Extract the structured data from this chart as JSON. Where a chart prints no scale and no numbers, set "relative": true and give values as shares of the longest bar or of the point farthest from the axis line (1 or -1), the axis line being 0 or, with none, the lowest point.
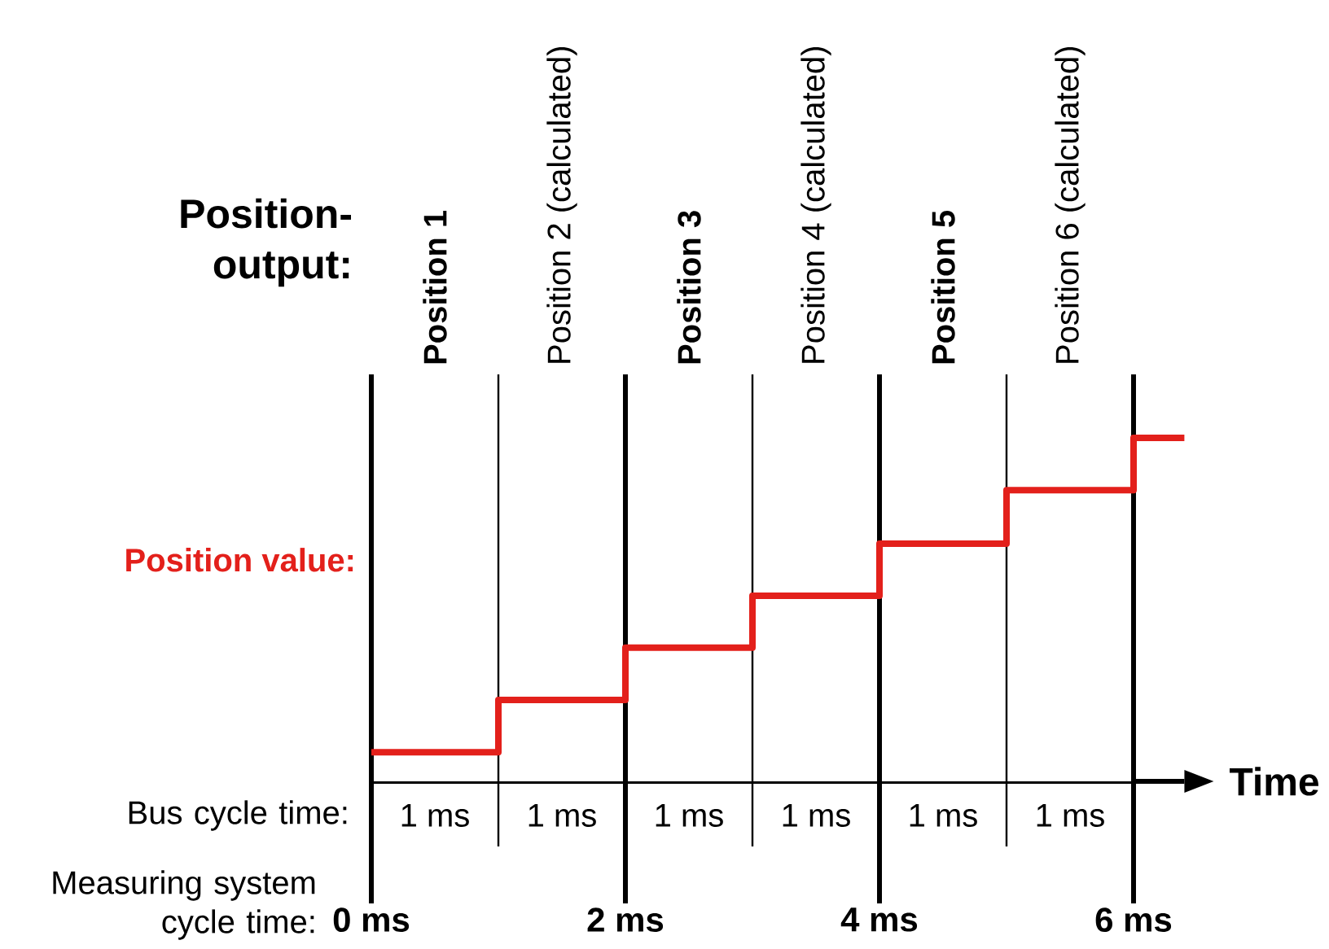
{
  "chart_data": {
    "type": "step",
    "title": "Position-output:",
    "xlabel": "Time",
    "ylabel": "Position value:",
    "relative": true,
    "series": [
      {
        "color": "#e3201b",
        "x": [
          0,
          1,
          2,
          3,
          4,
          5,
          6,
          6.4
        ],
        "values": [
          0.085,
          0.237,
          0.389,
          0.54,
          0.692,
          0.848,
          1,
          1
        ]
      }
    ],
    "xlim": [
      0,
      6.4
    ],
    "xticks": [
      {
        "value": 0,
        "label": "0 ms"
      },
      {
        "value": 1,
        "label": null
      },
      {
        "value": 2,
        "label": "2 ms"
      },
      {
        "value": 3,
        "label": null
      },
      {
        "value": 4,
        "label": "4 ms"
      },
      {
        "value": 5,
        "label": null
      },
      {
        "value": 6,
        "label": "6 ms"
      }
    ],
    "grid": "x",
    "bands": [
      {
        "axis": "x",
        "from": 0,
        "to": 1,
        "label": "**Position 1**",
        "color": "#ffffff"
      },
      {
        "axis": "x",
        "from": 1,
        "to": 2,
        "label": "Position 2 (calculated)",
        "color": "#ffffff"
      },
      {
        "axis": "x",
        "from": 2,
        "to": 3,
        "label": "**Position 3**",
        "color": "#ffffff"
      },
      {
        "axis": "x",
        "from": 3,
        "to": 4,
        "label": "Position 4 (calculated)",
        "color": "#ffffff"
      },
      {
        "axis": "x",
        "from": 4,
        "to": 5,
        "label": "**Position 5**",
        "color": "#ffffff"
      },
      {
        "axis": "x",
        "from": 5,
        "to": 6,
        "label": "Position 6 (calculated)",
        "color": "#ffffff"
      }
    ],
    "annotations": [
      "Bus cycle time:",
      "Measuring system cycle time:",
      "1 ms",
      "1 ms",
      "1 ms",
      "1 ms",
      "1 ms",
      "1 ms"
    ]
  }
}
